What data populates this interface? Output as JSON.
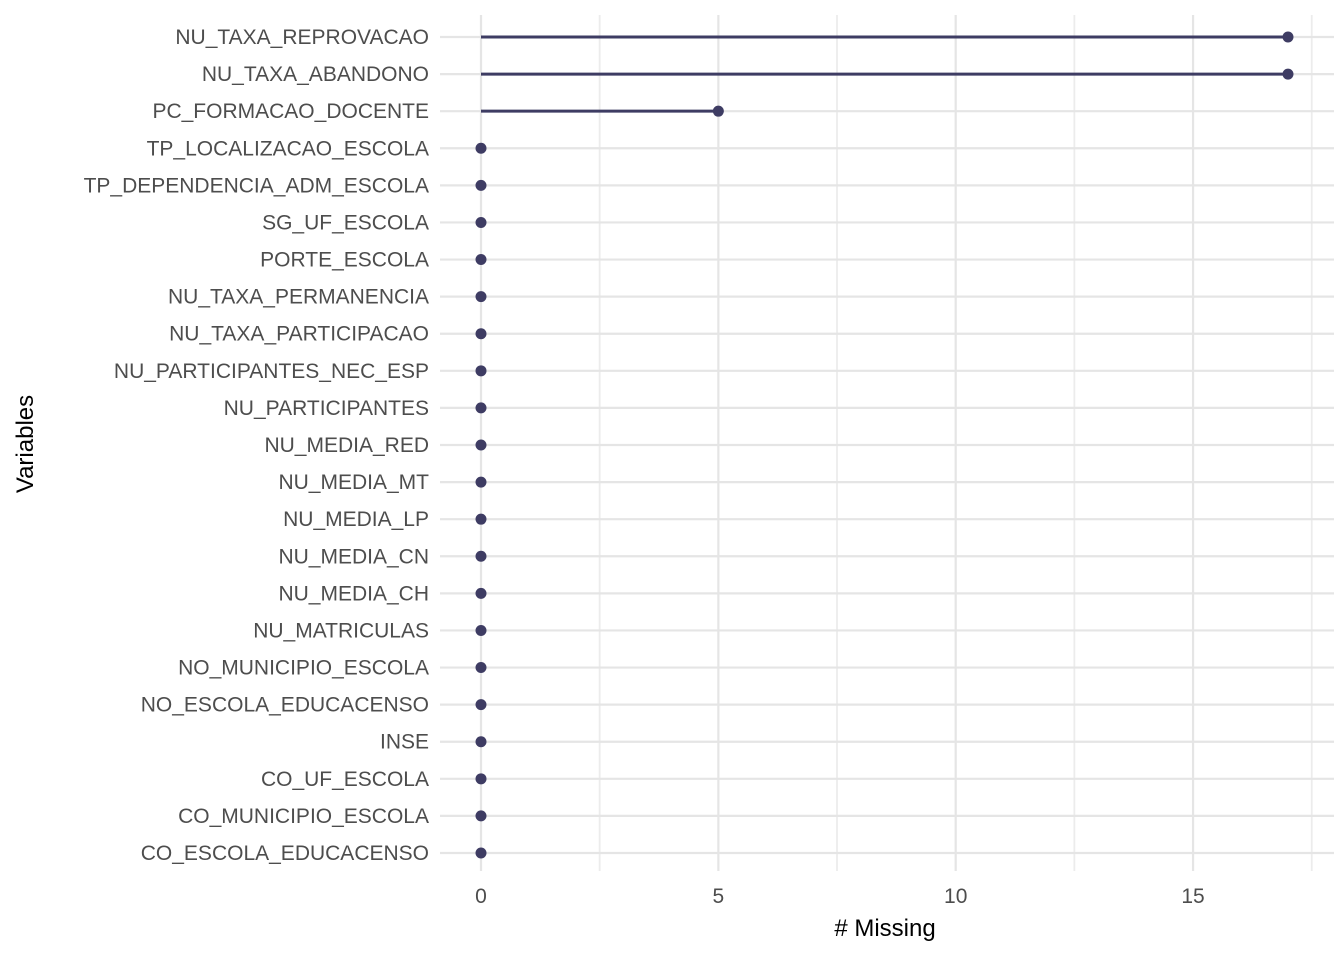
{
  "chart_data": {
    "type": "bar",
    "style": "horizontal-lollipop",
    "title": "",
    "xlabel": "# Missing",
    "ylabel": "Variables",
    "categories": [
      "NU_TAXA_REPROVACAO",
      "NU_TAXA_ABANDONO",
      "PC_FORMACAO_DOCENTE",
      "TP_LOCALIZACAO_ESCOLA",
      "TP_DEPENDENCIA_ADM_ESCOLA",
      "SG_UF_ESCOLA",
      "PORTE_ESCOLA",
      "NU_TAXA_PERMANENCIA",
      "NU_TAXA_PARTICIPACAO",
      "NU_PARTICIPANTES_NEC_ESP",
      "NU_PARTICIPANTES",
      "NU_MEDIA_RED",
      "NU_MEDIA_MT",
      "NU_MEDIA_LP",
      "NU_MEDIA_CN",
      "NU_MEDIA_CH",
      "NU_MATRICULAS",
      "NO_MUNICIPIO_ESCOLA",
      "NO_ESCOLA_EDUCACENSO",
      "INSE",
      "CO_UF_ESCOLA",
      "CO_MUNICIPIO_ESCOLA",
      "CO_ESCOLA_EDUCACENSO"
    ],
    "values": [
      17,
      17,
      5,
      0,
      0,
      0,
      0,
      0,
      0,
      0,
      0,
      0,
      0,
      0,
      0,
      0,
      0,
      0,
      0,
      0,
      0,
      0,
      0
    ],
    "x_major_ticks": [
      0,
      5,
      10,
      15
    ],
    "x_tick_labels": [
      "0",
      "5",
      "10",
      "15"
    ],
    "x_minor_gridlines": [
      2.5,
      7.5,
      12.5,
      17.5
    ],
    "xlim": [
      -0.85,
      17.95
    ],
    "grid": "on",
    "legend": "none",
    "colors": {
      "point": "#3E3C63",
      "stem": "#3E3C63",
      "grid_major": "#E5E5E5",
      "grid_minor": "#ECECEC",
      "axis_text": "#4D4D4D",
      "axis_title": "#000000",
      "background": "#FFFFFF"
    }
  }
}
